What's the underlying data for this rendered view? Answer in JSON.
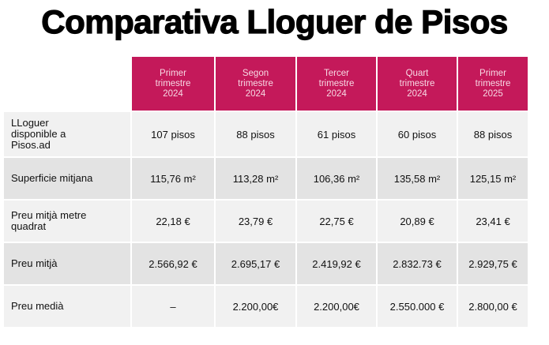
{
  "header": {
    "title": "Comparativa Lloguer de Pisos"
  },
  "table": {
    "columns": [
      "Primer\ntrimestre\n2024",
      "Segon\ntrimestre\n2024",
      "Tercer\ntrimestre\n2024",
      "Quart\ntrimestre\n2024",
      "Primer\ntrimestre\n2025"
    ],
    "rows": [
      [
        "LLoguer\ndisponible a\nPisos.ad",
        "107 pisos",
        "88 pisos",
        "61 pisos",
        "60 pisos",
        "88 pisos"
      ],
      [
        "Superficie mitjana",
        "115,76 m²",
        "113,28 m²",
        "106,36 m²",
        "135,58 m²",
        "125,15 m²"
      ],
      [
        "Preu mitjà metre\nquadrat",
        "22,18 €",
        "23,79 €",
        "22,75 €",
        "20,89 €",
        "23,41 €"
      ],
      [
        "Preu mitjà",
        "2.566,92 €",
        "2.695,17 €",
        "2.419,92 €",
        "2.832.73 €",
        "2.929,75 €"
      ],
      [
        "Preu medià",
        "–",
        "2.200,00€",
        "2.200,00€",
        "2.550.000 €",
        "2.800,00 €"
      ]
    ]
  }
}
